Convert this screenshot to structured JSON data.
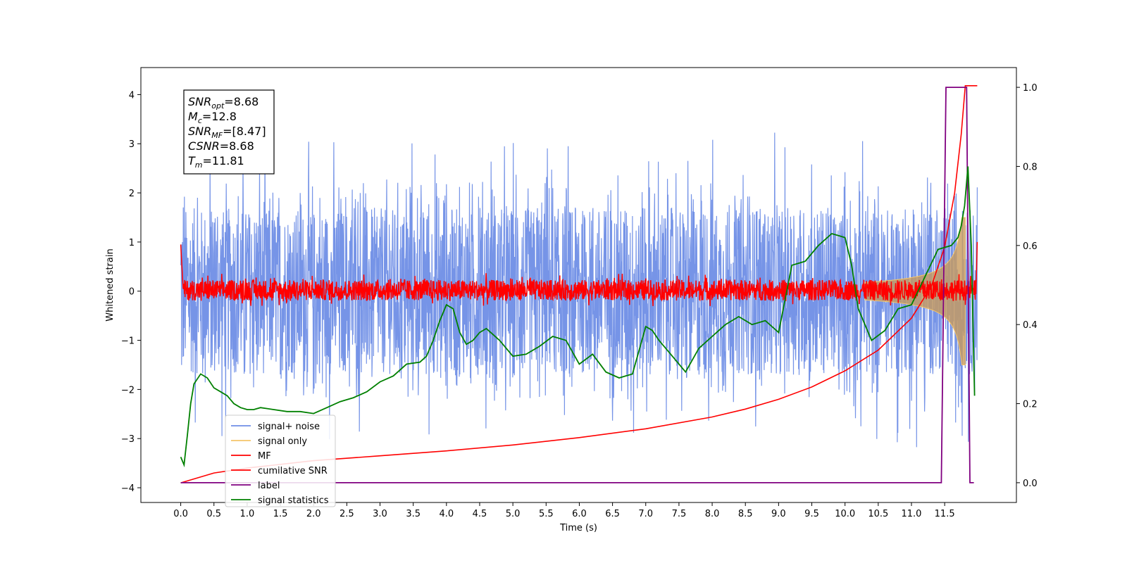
{
  "chart_data": {
    "type": "line",
    "xlabel": "Time (s)",
    "ylabel": "Whitened strain",
    "xlim": [
      -0.6,
      12.58
    ],
    "ylim": [
      -4.3,
      4.55
    ],
    "y2lim": [
      -0.05,
      1.05
    ],
    "x_ticks": [
      "0.0",
      "0.5",
      "1.0",
      "1.5",
      "2.0",
      "2.5",
      "3.0",
      "3.5",
      "4.0",
      "4.5",
      "5.0",
      "5.5",
      "6.0",
      "6.5",
      "7.0",
      "7.5",
      "8.0",
      "8.5",
      "9.0",
      "9.5",
      "10.0",
      "10.5",
      "11.0",
      "11.5"
    ],
    "y_ticks": [
      "−4",
      "−3",
      "−2",
      "−1",
      "0",
      "1",
      "2",
      "3",
      "4"
    ],
    "y2_ticks": [
      "0.0",
      "0.2",
      "0.4",
      "0.6",
      "0.8",
      "1.0"
    ],
    "legend_position": "lower-left",
    "annotation": [
      {
        "sym": "SNR",
        "sub": "opt",
        "val": "=8.68"
      },
      {
        "sym": "M",
        "sub": "c",
        "val": "=12.8"
      },
      {
        "sym": "SNR",
        "sub": "MF",
        "val": "=[8.47]"
      },
      {
        "sym": "CSNR",
        "sub": "",
        "val": "=8.68"
      },
      {
        "sym": "T",
        "sub": "m",
        "val": "=11.81"
      }
    ],
    "series": [
      {
        "name": "signal+ noise",
        "color": "#6f8ee6",
        "axis": "left",
        "style": "noise band, amplitude ~±2.5 with spikes to ±4.2",
        "x_range": [
          0.0,
          11.99
        ]
      },
      {
        "name": "signal only",
        "color": "#f5c56a",
        "axis": "left",
        "style": "chirp envelope growing toward merger",
        "x_range": [
          0.0,
          11.81
        ],
        "peak_amplitude": 1.5
      },
      {
        "name": "MF",
        "color": "#ff0000",
        "axis": "left",
        "style": "noise band around 0, amplitude ~±0.3",
        "x_range": [
          0.0,
          11.99
        ]
      },
      {
        "name": "cumilative SNR",
        "color": "#ff0000",
        "axis": "left",
        "x": [
          0.0,
          0.5,
          1.0,
          2.0,
          3.0,
          4.0,
          5.0,
          6.0,
          7.0,
          8.0,
          8.5,
          9.0,
          9.5,
          10.0,
          10.5,
          11.0,
          11.3,
          11.5,
          11.65,
          11.75,
          11.81,
          11.99
        ],
        "y": [
          -3.9,
          -3.7,
          -3.6,
          -3.45,
          -3.35,
          -3.25,
          -3.13,
          -2.98,
          -2.8,
          -2.56,
          -2.4,
          -2.2,
          -1.95,
          -1.62,
          -1.2,
          -0.55,
          0.1,
          0.9,
          2.0,
          3.2,
          4.18,
          4.18
        ]
      },
      {
        "name": "label",
        "color": "#800080",
        "axis": "right",
        "x": [
          0.0,
          11.45,
          11.52,
          11.83,
          11.88,
          11.94
        ],
        "y": [
          0.0,
          0.0,
          1.0,
          1.0,
          0.0,
          0.0
        ]
      },
      {
        "name": "signal statistics",
        "color": "#008000",
        "axis": "right",
        "x": [
          0.0,
          0.05,
          0.1,
          0.15,
          0.2,
          0.3,
          0.4,
          0.5,
          0.6,
          0.7,
          0.8,
          0.9,
          1.0,
          1.1,
          1.2,
          1.4,
          1.6,
          1.8,
          2.0,
          2.2,
          2.4,
          2.6,
          2.8,
          3.0,
          3.2,
          3.4,
          3.6,
          3.7,
          3.8,
          3.9,
          4.0,
          4.1,
          4.2,
          4.3,
          4.4,
          4.5,
          4.6,
          4.7,
          4.8,
          5.0,
          5.2,
          5.4,
          5.6,
          5.8,
          6.0,
          6.2,
          6.4,
          6.6,
          6.8,
          7.0,
          7.1,
          7.2,
          7.4,
          7.6,
          7.8,
          8.0,
          8.2,
          8.4,
          8.6,
          8.8,
          9.0,
          9.2,
          9.4,
          9.6,
          9.8,
          9.9,
          10.0,
          10.1,
          10.2,
          10.4,
          10.6,
          10.8,
          11.0,
          11.2,
          11.4,
          11.6,
          11.7,
          11.75,
          11.8,
          11.85,
          11.9,
          11.95
        ],
        "y": [
          0.065,
          0.045,
          0.12,
          0.2,
          0.25,
          0.275,
          0.265,
          0.24,
          0.23,
          0.22,
          0.2,
          0.19,
          0.185,
          0.185,
          0.19,
          0.185,
          0.18,
          0.18,
          0.175,
          0.19,
          0.205,
          0.215,
          0.23,
          0.255,
          0.27,
          0.3,
          0.305,
          0.32,
          0.36,
          0.41,
          0.45,
          0.44,
          0.38,
          0.35,
          0.36,
          0.38,
          0.39,
          0.375,
          0.36,
          0.32,
          0.325,
          0.345,
          0.37,
          0.36,
          0.3,
          0.325,
          0.28,
          0.265,
          0.275,
          0.395,
          0.385,
          0.36,
          0.32,
          0.28,
          0.34,
          0.37,
          0.4,
          0.42,
          0.4,
          0.41,
          0.38,
          0.55,
          0.56,
          0.6,
          0.63,
          0.625,
          0.62,
          0.55,
          0.44,
          0.36,
          0.385,
          0.44,
          0.45,
          0.52,
          0.59,
          0.6,
          0.62,
          0.65,
          0.7,
          0.8,
          0.6,
          0.22
        ]
      }
    ]
  }
}
